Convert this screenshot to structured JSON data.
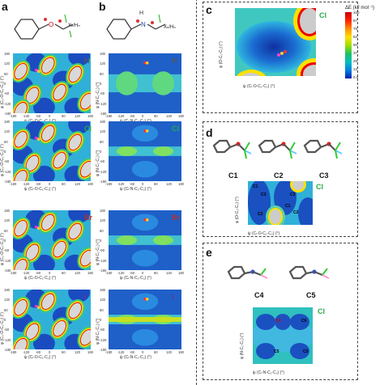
{
  "panels": {
    "a": {
      "label": "a",
      "ytitle": "φ (C₂-O-C₁-C₂) (°)",
      "xtitle": "ψ (Cₗ-O-C₁-C₂) (°)",
      "formula_tag": "Xₙ/Hₙ"
    },
    "b": {
      "label": "b",
      "ytitle": "φ (N-C₁-C₂) (°)",
      "xtitle": "ψ (Cₗ-N-C₁-C₂) (°)",
      "formula_tag": "Xₙ/Hₙ"
    },
    "c": {
      "label": "c",
      "ytitle": "φ (O-C₁-C₂) (°)",
      "xtitle": "ψ (Cₗ-O-C₁-C₂) (°)",
      "halogen": "Cl"
    },
    "d": {
      "label": "d",
      "ytitle": "φ (O-C₁-C₂) (°)",
      "xtitle": "ψ (Cₗ-O-C₁-C₂) (°)",
      "halogen": "Cl",
      "conformers": [
        "C1",
        "C2",
        "C3"
      ],
      "markers": [
        "C1",
        "C2",
        "C3",
        "C2",
        "C1",
        "C3"
      ]
    },
    "e": {
      "label": "e",
      "ytitle": "φ (N-C₁-C₂) (°)",
      "xtitle": "ψ (Cₗ-N-C₁-C₂) (°)",
      "halogen": "Cl",
      "conformers": [
        "C4",
        "C5"
      ],
      "markers": [
        "C4",
        "C6",
        "C5",
        "C5"
      ]
    }
  },
  "rows": [
    {
      "halogen": "H",
      "color": "#555555"
    },
    {
      "halogen": "Cl",
      "color": "#2aa84a"
    },
    {
      "halogen": "Br",
      "color": "#b03030"
    },
    {
      "halogen": "I",
      "color": "#7a2a9a"
    }
  ],
  "ticks": {
    "x": [
      "-180",
      "-120",
      "-60",
      "0",
      "60",
      "120",
      "180"
    ],
    "y": [
      "180",
      "120",
      "60",
      "0",
      "-60",
      "-120",
      "-180"
    ]
  },
  "colorbar": {
    "title": "ΔE (kJ mol⁻¹)",
    "labels": [
      "100",
      "87",
      "75",
      "62",
      "50",
      "37",
      "25",
      "12",
      "0.0"
    ],
    "colors": [
      "#c80000",
      "#ff2000",
      "#ff8c00",
      "#ffe000",
      "#a0e000",
      "#20c060",
      "#00c0c0",
      "#0080e0",
      "#0020b0"
    ]
  }
}
